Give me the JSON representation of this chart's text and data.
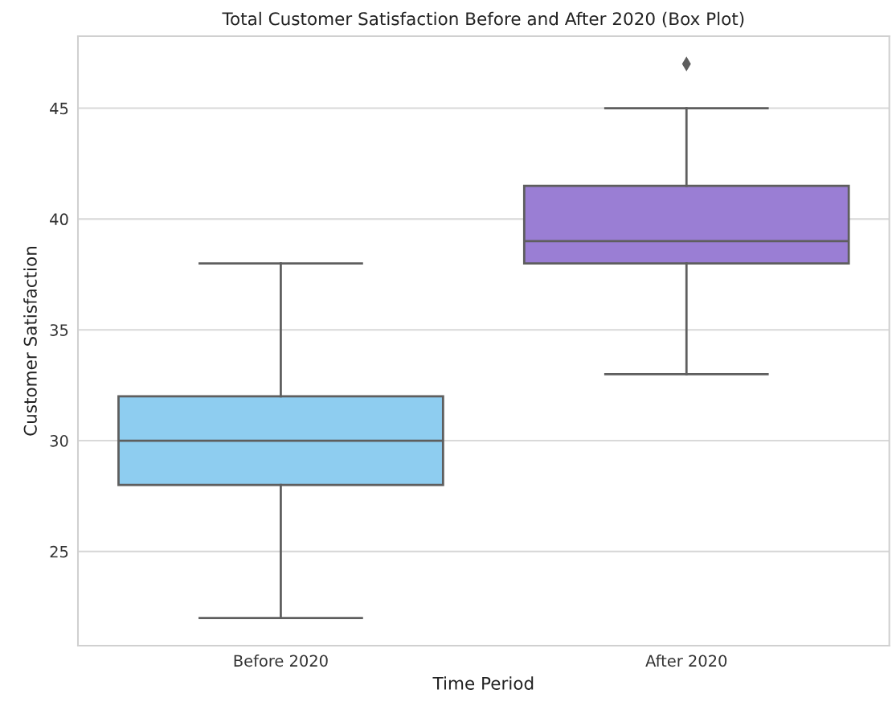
{
  "chart_data": {
    "type": "box",
    "title": "Total Customer Satisfaction Before and After 2020 (Box Plot)",
    "xlabel": "Time Period",
    "ylabel": "Customer Satisfaction",
    "categories": [
      "Before 2020",
      "After 2020"
    ],
    "boxes": [
      {
        "low": 22,
        "q1": 28,
        "median": 30,
        "q3": 32,
        "high": 38
      },
      {
        "low": 33,
        "q1": 38,
        "median": 39,
        "q3": 41.5,
        "high": 45,
        "outliers": [
          47
        ]
      }
    ],
    "colors": [
      "#8ecdf0",
      "#9a7ed4"
    ],
    "ylim": [
      20.75,
      48.25
    ],
    "yticks": [
      25,
      30,
      35,
      40,
      45
    ],
    "grid": "y",
    "marker": "diamond"
  }
}
